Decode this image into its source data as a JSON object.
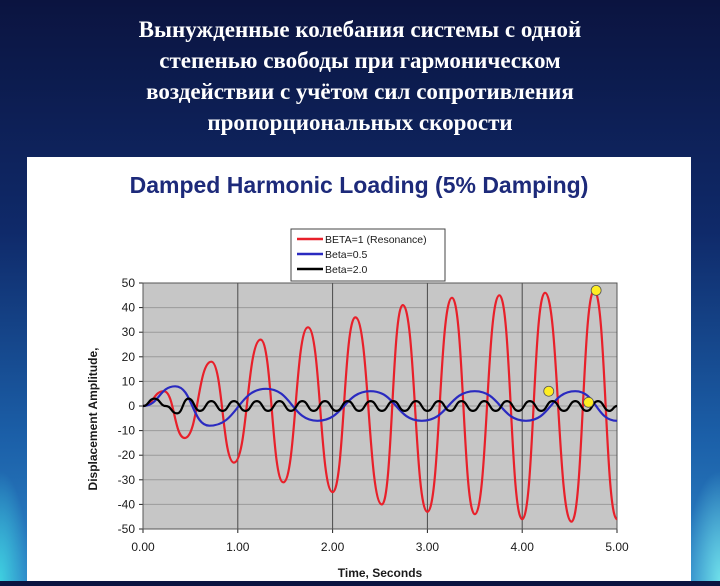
{
  "slide": {
    "title_lines": [
      "Вынужденные колебания  системы с одной",
      "степенью свободы при гармоническом",
      "воздействии с учётом сил сопротивления",
      "пропорциональных скорости"
    ]
  },
  "chart_data": {
    "type": "line",
    "title": "Damped Harmonic Loading (5% Damping)",
    "xlabel": "Time, Seconds",
    "ylabel": "Displacement Amplitude,",
    "xlim": [
      0,
      5
    ],
    "ylim": [
      -50,
      50
    ],
    "x_ticks": [
      "0.00",
      "1.00",
      "2.00",
      "3.00",
      "4.00",
      "5.00"
    ],
    "y_ticks": [
      "50",
      "40",
      "30",
      "20",
      "10",
      "0",
      "-10",
      "-20",
      "-30",
      "-40",
      "-50"
    ],
    "grid": true,
    "legend_position": "top-center",
    "series": [
      {
        "name": "BETA=1 (Resonance)",
        "color": "#e8202a",
        "x": [
          0.0,
          0.22,
          0.44,
          0.72,
          0.96,
          1.24,
          1.48,
          1.74,
          2.0,
          2.24,
          2.52,
          2.74,
          3.0,
          3.26,
          3.5,
          3.76,
          4.0,
          4.24,
          4.52,
          4.76,
          5.0
        ],
        "y": [
          0,
          6,
          -13,
          18,
          -23,
          27,
          -31,
          32,
          -35,
          36,
          -40,
          41,
          -43,
          44,
          -44,
          45,
          -46,
          46,
          -47,
          47,
          -46
        ]
      },
      {
        "name": "Beta=0.5",
        "color": "#2a2ac0",
        "x": [
          0.0,
          0.34,
          0.7,
          1.3,
          1.84,
          2.4,
          2.94,
          3.5,
          4.04,
          4.56,
          5.0
        ],
        "y": [
          0,
          8,
          -8,
          7,
          -6,
          6,
          -6,
          6,
          -6,
          6,
          -6
        ]
      },
      {
        "name": "Beta=2.0",
        "color": "#000000",
        "x": [
          0.0,
          0.12,
          0.24,
          0.36,
          0.48,
          0.6,
          0.72,
          0.84,
          0.96,
          1.08,
          1.2,
          1.32,
          1.44,
          1.56,
          1.68,
          1.8,
          1.92,
          2.04,
          2.16,
          2.28,
          2.4,
          2.52,
          2.64,
          2.76,
          2.88,
          3.0,
          3.12,
          3.24,
          3.36,
          3.48,
          3.6,
          3.72,
          3.84,
          3.96,
          4.08,
          4.2,
          4.32,
          4.44,
          4.56,
          4.68,
          4.8,
          4.92,
          5.0
        ],
        "y": [
          0,
          3,
          0,
          -3,
          3,
          -2,
          2,
          -2,
          2,
          -2,
          2,
          -2,
          2,
          -2,
          2,
          -2,
          2,
          -2,
          2,
          -2,
          2,
          -2,
          2,
          -2,
          2,
          -2,
          2,
          -2,
          2,
          -2,
          2,
          -2,
          2,
          -2,
          2,
          -2,
          2,
          -2,
          2,
          -2,
          2,
          -2,
          0
        ]
      }
    ],
    "markers": [
      {
        "x": 4.78,
        "y": 47,
        "color": "#ffee22"
      },
      {
        "x": 4.28,
        "y": 6,
        "color": "#ffee22"
      },
      {
        "x": 4.7,
        "y": 1.5,
        "color": "#ffee22"
      }
    ]
  }
}
